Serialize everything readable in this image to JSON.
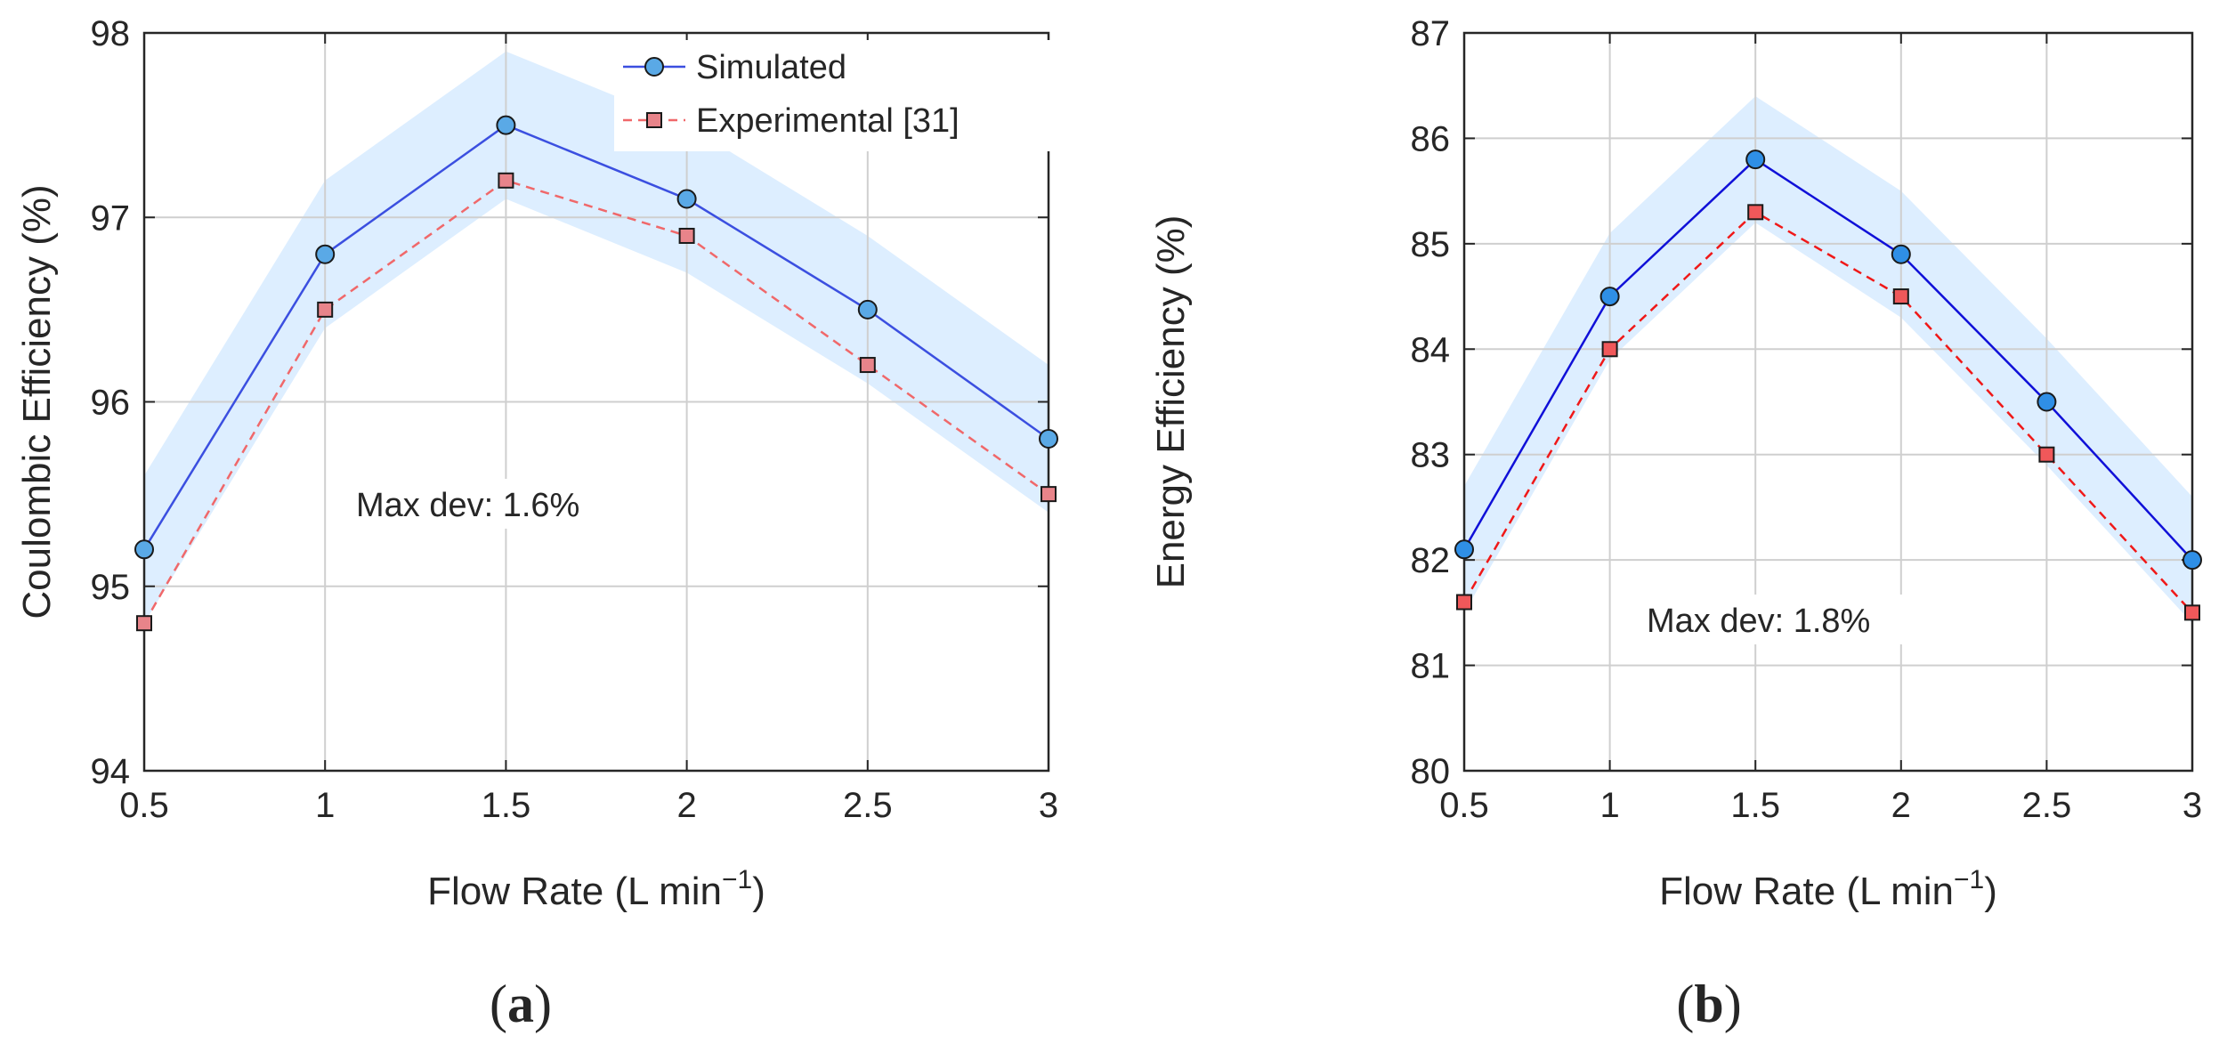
{
  "chart_data": [
    {
      "type": "line",
      "panel": "(a)",
      "panel_letter": "a",
      "xlabel": "Flow Rate (L min",
      "xlabel_sup": "−1",
      "xlabel_close": ")",
      "ylabel": "Coulombic Efficiency (%)",
      "x": [
        0.5,
        1,
        1.5,
        2,
        2.5,
        3
      ],
      "x_tick_labels": [
        "0.5",
        "1",
        "1.5",
        "2",
        "2.5",
        "3"
      ],
      "xlim": [
        0.5,
        3
      ],
      "ylim": [
        94,
        98
      ],
      "y_ticks": [
        94,
        95,
        96,
        97,
        98
      ],
      "y_tick_labels": [
        "94",
        "95",
        "96",
        "97",
        "98"
      ],
      "grid": true,
      "series": [
        {
          "name": "Simulated",
          "values": [
            95.2,
            96.8,
            97.5,
            97.1,
            96.5,
            95.8
          ],
          "color": "#3b4fe0",
          "marker": "circle",
          "marker_fill": "#5aa9e6",
          "dashed": false
        },
        {
          "name": "Experimental [31]",
          "values": [
            94.8,
            96.5,
            97.2,
            96.9,
            96.2,
            95.5
          ],
          "color": "#f0686a",
          "marker": "square",
          "marker_fill": "#e8848a",
          "dashed": true
        }
      ],
      "band": {
        "upper": [
          95.6,
          97.2,
          97.9,
          97.5,
          96.9,
          96.2
        ],
        "lower": [
          94.8,
          96.4,
          97.1,
          96.7,
          96.1,
          95.4
        ],
        "color": "#ddeeff"
      },
      "legend": {
        "position": "top-right",
        "entries": [
          "Simulated",
          "Experimental [31]"
        ]
      },
      "annotation": "Max dev: 1.6%"
    },
    {
      "type": "line",
      "panel": "(b)",
      "panel_letter": "b",
      "xlabel": "Flow Rate (L min",
      "xlabel_sup": "−1",
      "xlabel_close": ")",
      "ylabel": "Energy Efficiency (%)",
      "x": [
        0.5,
        1,
        1.5,
        2,
        2.5,
        3
      ],
      "x_tick_labels": [
        "0.5",
        "1",
        "1.5",
        "2",
        "2.5",
        "3"
      ],
      "xlim": [
        0.5,
        3
      ],
      "ylim": [
        80,
        87
      ],
      "y_ticks": [
        80,
        81,
        82,
        83,
        84,
        85,
        86,
        87
      ],
      "y_tick_labels": [
        "80",
        "81",
        "82",
        "83",
        "84",
        "85",
        "86",
        "87"
      ],
      "grid": true,
      "series": [
        {
          "name": "Simulated",
          "values": [
            82.1,
            84.5,
            85.8,
            84.9,
            83.5,
            82.0
          ],
          "color": "#1010d8",
          "marker": "circle",
          "marker_fill": "#2f8fe6",
          "dashed": false
        },
        {
          "name": "Experimental",
          "values": [
            81.6,
            84.0,
            85.3,
            84.5,
            83.0,
            81.5
          ],
          "color": "#f01818",
          "marker": "square",
          "marker_fill": "#f0585a",
          "dashed": true
        }
      ],
      "band": {
        "upper": [
          82.7,
          85.1,
          86.4,
          85.5,
          84.1,
          82.6
        ],
        "lower": [
          81.5,
          83.9,
          85.2,
          84.3,
          82.9,
          81.4
        ],
        "color": "#ddeeff"
      },
      "annotation": "Max dev: 1.8%"
    }
  ]
}
